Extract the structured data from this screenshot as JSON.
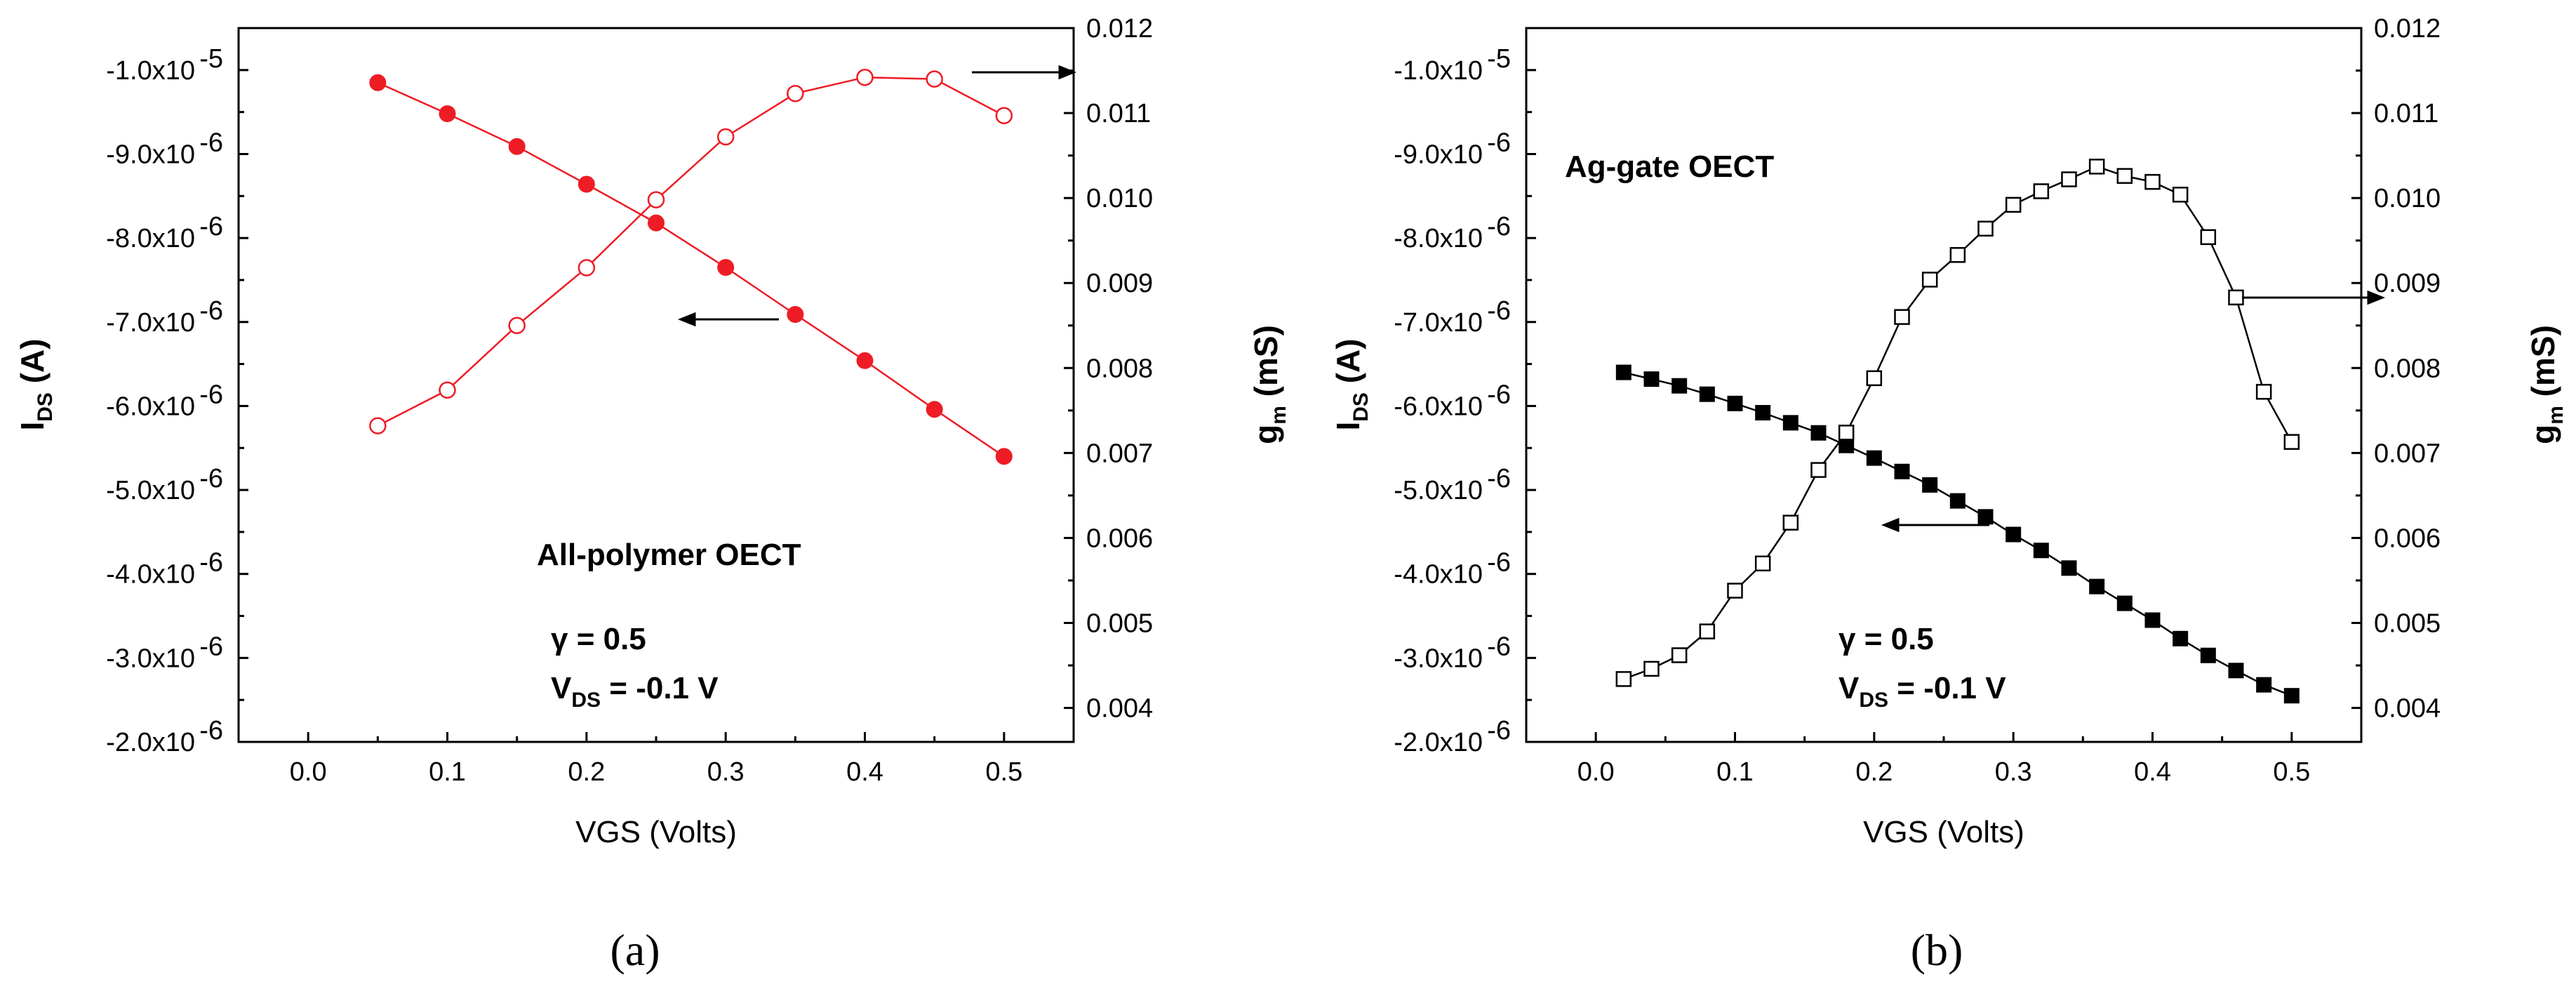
{
  "chart_data": [
    {
      "type": "scatter",
      "panel_label": "(a)",
      "xlabel": "VGS (Volts)",
      "ylabel_left_main": "I",
      "ylabel_left_sub": "DS",
      "ylabel_left_unit": " (A)",
      "ylabel_right_main": "g",
      "ylabel_right_sub": "m",
      "ylabel_right_unit": " (mS)",
      "xlim": [
        -0.05,
        0.55
      ],
      "ylim_left": [
        -2e-06,
        -1.05e-05
      ],
      "ylim_right": [
        0.0036,
        0.012
      ],
      "x_ticks": [
        "0.0",
        "0.1",
        "0.2",
        "0.3",
        "0.4",
        "0.5"
      ],
      "y_left_ticks": [
        {
          "mant": "-2.0x10",
          "exp": "-6"
        },
        {
          "mant": "-3.0x10",
          "exp": "-6"
        },
        {
          "mant": "-4.0x10",
          "exp": "-6"
        },
        {
          "mant": "-5.0x10",
          "exp": "-6"
        },
        {
          "mant": "-6.0x10",
          "exp": "-6"
        },
        {
          "mant": "-7.0x10",
          "exp": "-6"
        },
        {
          "mant": "-8.0x10",
          "exp": "-6"
        },
        {
          "mant": "-9.0x10",
          "exp": "-6"
        },
        {
          "mant": "-1.0x10",
          "exp": "-5"
        }
      ],
      "y_right_ticks": [
        "0.004",
        "0.005",
        "0.006",
        "0.007",
        "0.008",
        "0.009",
        "0.010",
        "0.011",
        "0.012"
      ],
      "color": "#ee1c25",
      "series": [
        {
          "axis": "left",
          "marker": "filled-circle",
          "x": [
            0.05,
            0.1,
            0.15,
            0.2,
            0.25,
            0.3,
            0.35,
            0.4,
            0.45,
            0.5
          ],
          "values": [
            -9.85e-06,
            -9.48e-06,
            -9.09e-06,
            -8.64e-06,
            -8.18e-06,
            -7.65e-06,
            -7.09e-06,
            -6.54e-06,
            -5.96e-06,
            -5.4e-06
          ]
        },
        {
          "axis": "right",
          "marker": "open-circle",
          "x": [
            0.05,
            0.1,
            0.15,
            0.2,
            0.25,
            0.3,
            0.35,
            0.4,
            0.45,
            0.5
          ],
          "values": [
            0.00732,
            0.00774,
            0.0085,
            0.00918,
            0.00998,
            0.01072,
            0.01123,
            0.01142,
            0.0114,
            0.01097
          ]
        }
      ],
      "annotations": {
        "title": "All-polymer OECT",
        "gamma": "γ = 0.5",
        "vds_main": "V",
        "vds_sub": "DS",
        "vds_value": " = -0.1 V"
      }
    },
    {
      "type": "scatter",
      "panel_label": "(b)",
      "xlabel": "VGS (Volts)",
      "ylabel_left_main": "I",
      "ylabel_left_sub": "DS",
      "ylabel_left_unit": " (A)",
      "ylabel_right_main": "g",
      "ylabel_right_sub": "m",
      "ylabel_right_unit": " (mS)",
      "xlim": [
        -0.05,
        0.55
      ],
      "ylim_left": [
        -2e-06,
        -1.05e-05
      ],
      "ylim_right": [
        0.0036,
        0.012
      ],
      "x_ticks": [
        "0.0",
        "0.1",
        "0.2",
        "0.3",
        "0.4",
        "0.5"
      ],
      "y_left_ticks": [
        {
          "mant": "-2.0x10",
          "exp": "-6"
        },
        {
          "mant": "-3.0x10",
          "exp": "-6"
        },
        {
          "mant": "-4.0x10",
          "exp": "-6"
        },
        {
          "mant": "-5.0x10",
          "exp": "-6"
        },
        {
          "mant": "-6.0x10",
          "exp": "-6"
        },
        {
          "mant": "-7.0x10",
          "exp": "-6"
        },
        {
          "mant": "-8.0x10",
          "exp": "-6"
        },
        {
          "mant": "-9.0x10",
          "exp": "-6"
        },
        {
          "mant": "-1.0x10",
          "exp": "-5"
        }
      ],
      "y_right_ticks": [
        "0.004",
        "0.005",
        "0.006",
        "0.007",
        "0.008",
        "0.009",
        "0.010",
        "0.011",
        "0.012"
      ],
      "color": "#000000",
      "series": [
        {
          "axis": "left",
          "marker": "filled-square",
          "x": [
            0.02,
            0.04,
            0.06,
            0.08,
            0.1,
            0.12,
            0.14,
            0.16,
            0.18,
            0.2,
            0.22,
            0.24,
            0.26,
            0.28,
            0.3,
            0.32,
            0.34,
            0.36,
            0.38,
            0.4,
            0.42,
            0.44,
            0.46,
            0.48,
            0.5
          ],
          "values": [
            -6.4e-06,
            -6.32e-06,
            -6.24e-06,
            -6.14e-06,
            -6.03e-06,
            -5.92e-06,
            -5.8e-06,
            -5.68e-06,
            -5.53e-06,
            -5.38e-06,
            -5.22e-06,
            -5.06e-06,
            -4.87e-06,
            -4.68e-06,
            -4.47e-06,
            -4.28e-06,
            -4.07e-06,
            -3.85e-06,
            -3.65e-06,
            -3.45e-06,
            -3.23e-06,
            -3.03e-06,
            -2.85e-06,
            -2.68e-06,
            -2.55e-06
          ]
        },
        {
          "axis": "right",
          "marker": "open-square",
          "x": [
            0.02,
            0.04,
            0.06,
            0.08,
            0.1,
            0.12,
            0.14,
            0.16,
            0.18,
            0.2,
            0.22,
            0.24,
            0.26,
            0.28,
            0.3,
            0.32,
            0.34,
            0.36,
            0.38,
            0.4,
            0.42,
            0.44,
            0.46,
            0.48,
            0.5
          ],
          "values": [
            0.00434,
            0.00446,
            0.00462,
            0.0049,
            0.00538,
            0.0057,
            0.00618,
            0.0068,
            0.00724,
            0.00788,
            0.0086,
            0.00904,
            0.00933,
            0.00964,
            0.00992,
            0.01008,
            0.01022,
            0.01037,
            0.01026,
            0.01019,
            0.01004,
            0.00954,
            0.00883,
            0.00772,
            0.00713
          ]
        }
      ],
      "annotations": {
        "title": "Ag-gate OECT",
        "gamma": "γ = 0.5",
        "vds_main": "V",
        "vds_sub": "DS",
        "vds_value": " = -0.1 V"
      }
    }
  ]
}
